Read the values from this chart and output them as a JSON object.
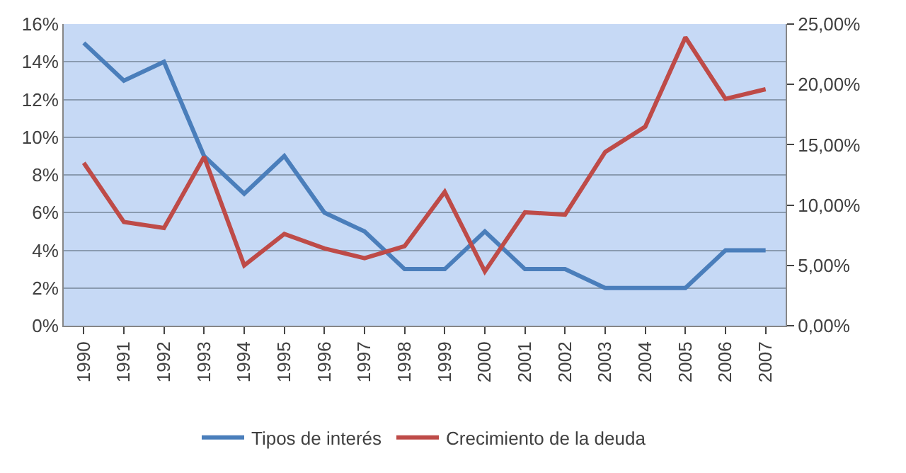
{
  "chart_data": {
    "type": "line",
    "categories": [
      "1990",
      "1991",
      "1992",
      "1993",
      "1994",
      "1995",
      "1996",
      "1997",
      "1998",
      "1999",
      "2000",
      "2001",
      "2002",
      "2003",
      "2004",
      "2005",
      "2006",
      "2007"
    ],
    "series": [
      {
        "name": "Tipos de interés",
        "color": "#4a7ebb",
        "values": [
          15,
          13,
          14,
          9,
          7,
          9,
          6,
          5,
          3,
          3,
          5,
          3,
          3,
          2,
          2,
          2,
          4,
          4
        ]
      },
      {
        "name": "Crecimiento de la deuda",
        "color": "#be4b48",
        "axis": "y2",
        "values": [
          13.5,
          8.6,
          8.1,
          14.0,
          5.0,
          7.6,
          6.4,
          5.6,
          6.6,
          11.1,
          4.5,
          9.4,
          9.2,
          14.4,
          16.5,
          23.9,
          18.8,
          19.6
        ]
      }
    ],
    "ylim": [
      0,
      16
    ],
    "yticks": [
      {
        "value": 0,
        "label": "0%"
      },
      {
        "value": 2,
        "label": "2%"
      },
      {
        "value": 4,
        "label": "4%"
      },
      {
        "value": 6,
        "label": "6%"
      },
      {
        "value": 8,
        "label": "8%"
      },
      {
        "value": 10,
        "label": "10%"
      },
      {
        "value": 12,
        "label": "12%"
      },
      {
        "value": 14,
        "label": "14%"
      },
      {
        "value": 16,
        "label": "16%"
      }
    ],
    "y2lim": [
      0,
      25
    ],
    "y2ticks": [
      {
        "value": 0,
        "label": "0,00%"
      },
      {
        "value": 5,
        "label": "5,00%"
      },
      {
        "value": 10,
        "label": "10,00%"
      },
      {
        "value": 15,
        "label": "15,00%"
      },
      {
        "value": 20,
        "label": "20,00%"
      },
      {
        "value": 25,
        "label": "25,00%"
      }
    ],
    "grid": "y",
    "legend": "bottom",
    "marker": "none",
    "line_style": "solid"
  }
}
